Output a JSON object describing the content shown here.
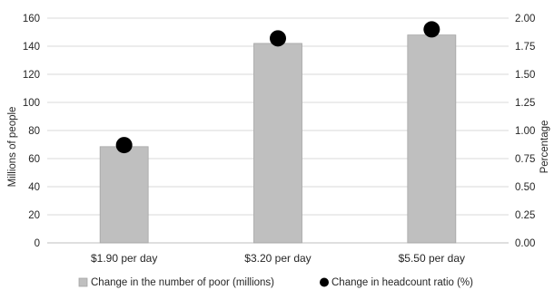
{
  "chart_data": {
    "type": "bar",
    "categories": [
      "$1.90 per day",
      "$3.20 per day",
      "$5.50 per day"
    ],
    "series": [
      {
        "name": "Change in the number of poor (millions)",
        "kind": "bar",
        "axis": "left",
        "color": "#bfbfbf",
        "values": [
          68.5,
          142,
          148
        ]
      },
      {
        "name": "Change in headcount ratio (%)",
        "kind": "point",
        "axis": "right",
        "color": "#000000",
        "values": [
          0.87,
          1.82,
          1.9
        ]
      }
    ],
    "ylabel": "Millions of people",
    "y2label": "Percentage",
    "ylim": [
      0,
      160
    ],
    "y2lim": [
      0,
      2.0
    ],
    "yticks": [
      "0",
      "20",
      "40",
      "60",
      "80",
      "100",
      "120",
      "140",
      "160"
    ],
    "y2ticks": [
      "0.00",
      "0.25",
      "0.50",
      "0.75",
      "1.00",
      "1.25",
      "1.50",
      "1.75",
      "2.00"
    ],
    "grid": true,
    "legend_position": "bottom"
  }
}
